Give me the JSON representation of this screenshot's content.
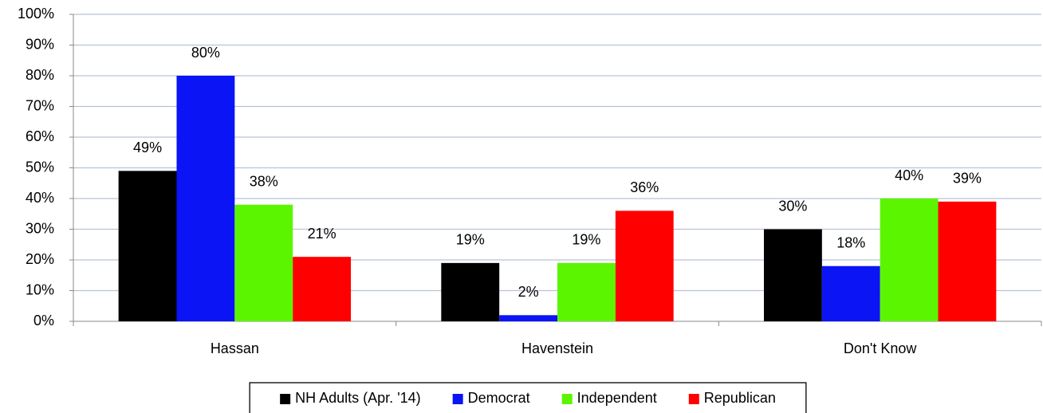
{
  "chart_data": {
    "type": "bar",
    "categories": [
      "Hassan",
      "Havenstein",
      "Don't Know"
    ],
    "series": [
      {
        "name": "NH Adults (Apr. '14)",
        "color": "#000000",
        "values": [
          49,
          19,
          30
        ],
        "value_labels": [
          "49%",
          "19%",
          "30%"
        ]
      },
      {
        "name": "Democrat",
        "color": "#0a14f5",
        "values": [
          80,
          2,
          18
        ],
        "value_labels": [
          "80%",
          "2%",
          "18%"
        ]
      },
      {
        "name": "Independent",
        "color": "#5cf500",
        "values": [
          38,
          19,
          40
        ],
        "value_labels": [
          "38%",
          "19%",
          "40%"
        ]
      },
      {
        "name": "Republican",
        "color": "#ff0000",
        "values": [
          21,
          36,
          39
        ],
        "value_labels": [
          "21%",
          "36%",
          "39%"
        ]
      }
    ],
    "ylim": [
      0,
      100
    ],
    "yticks": [
      {
        "value": 0,
        "label": "0%"
      },
      {
        "value": 10,
        "label": "10%"
      },
      {
        "value": 20,
        "label": "20%"
      },
      {
        "value": 30,
        "label": "30%"
      },
      {
        "value": 40,
        "label": "40%"
      },
      {
        "value": 50,
        "label": "50%"
      },
      {
        "value": 60,
        "label": "60%"
      },
      {
        "value": 70,
        "label": "70%"
      },
      {
        "value": 80,
        "label": "80%"
      },
      {
        "value": 90,
        "label": "90%"
      },
      {
        "value": 100,
        "label": "100%"
      }
    ],
    "grid": true,
    "legend": "bottom"
  }
}
